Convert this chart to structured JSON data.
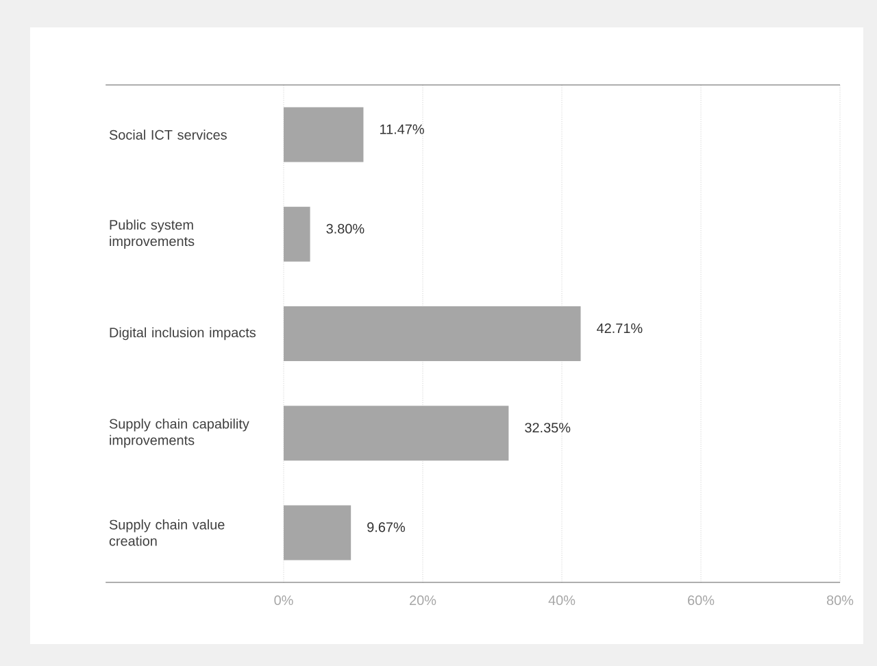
{
  "chart_data": {
    "type": "bar",
    "orientation": "horizontal",
    "categories": [
      "Social ICT services",
      "Public system improvements",
      "Digital inclusion impacts",
      "Supply chain capability improvements",
      "Supply chain value creation"
    ],
    "values": [
      11.47,
      3.8,
      42.71,
      32.35,
      9.67
    ],
    "value_labels": [
      "11.47%",
      "3.80%",
      "42.71%",
      "32.35%",
      "9.67%"
    ],
    "color": "#a6a6a6",
    "xlim": [
      0,
      80
    ],
    "xticks": [
      {
        "value": 0,
        "label": "0%"
      },
      {
        "value": 20,
        "label": "20%"
      },
      {
        "value": 40,
        "label": "40%"
      },
      {
        "value": 60,
        "label": "60%"
      },
      {
        "value": 80,
        "label": "80%"
      }
    ],
    "grid": "x"
  }
}
